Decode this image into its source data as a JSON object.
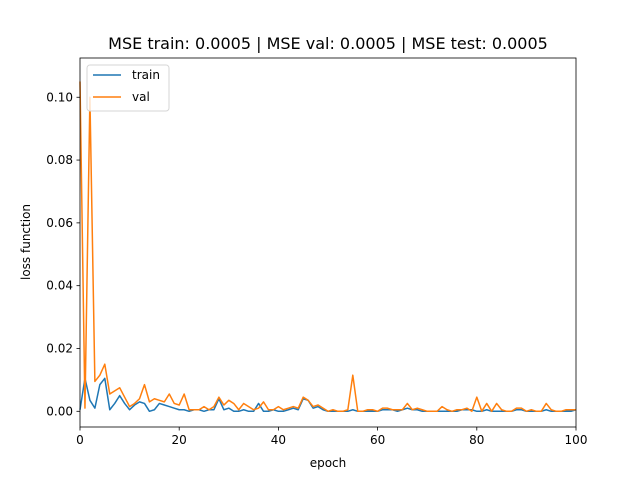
{
  "chart_data": {
    "type": "line",
    "title": "MSE train: 0.0005 | MSE val: 0.0005 | MSE test: 0.0005",
    "xlabel": "epoch",
    "ylabel": "loss function",
    "xlim": [
      0,
      100
    ],
    "ylim": [
      -0.005,
      0.1125
    ],
    "x_ticks": [
      0,
      20,
      40,
      60,
      80,
      100
    ],
    "x_tick_labels": [
      "0",
      "20",
      "40",
      "60",
      "80",
      "100"
    ],
    "y_ticks": [
      0.0,
      0.02,
      0.04,
      0.06,
      0.08,
      0.1
    ],
    "y_tick_labels": [
      "0.00",
      "0.02",
      "0.04",
      "0.06",
      "0.08",
      "0.10"
    ],
    "grid": false,
    "legend_position": "top-left",
    "x": [
      0,
      1,
      2,
      3,
      4,
      5,
      6,
      7,
      8,
      9,
      10,
      11,
      12,
      13,
      14,
      15,
      16,
      17,
      18,
      19,
      20,
      21,
      22,
      23,
      24,
      25,
      26,
      27,
      28,
      29,
      30,
      31,
      32,
      33,
      34,
      35,
      36,
      37,
      38,
      39,
      40,
      41,
      42,
      43,
      44,
      45,
      46,
      47,
      48,
      49,
      50,
      51,
      52,
      53,
      54,
      55,
      56,
      57,
      58,
      59,
      60,
      61,
      62,
      63,
      64,
      65,
      66,
      67,
      68,
      69,
      70,
      71,
      72,
      73,
      74,
      75,
      76,
      77,
      78,
      79,
      80,
      81,
      82,
      83,
      84,
      85,
      86,
      87,
      88,
      89,
      90,
      91,
      92,
      93,
      94,
      95,
      96,
      97,
      98,
      99,
      100
    ],
    "series": [
      {
        "name": "train",
        "color": "#1f77b4",
        "values": [
          0.0005,
          0.0105,
          0.0035,
          0.001,
          0.0085,
          0.0105,
          0.0005,
          0.0025,
          0.005,
          0.0025,
          0.0005,
          0.002,
          0.003,
          0.0025,
          0.0,
          0.0005,
          0.0025,
          0.002,
          0.0015,
          0.001,
          0.0005,
          0.0005,
          0.0,
          0.0005,
          0.0005,
          0.0,
          0.0005,
          0.0005,
          0.004,
          0.0005,
          0.001,
          0.0,
          0.0,
          0.0005,
          0.0,
          0.0,
          0.0025,
          0.0,
          0.0,
          0.0005,
          0.0,
          0.0,
          0.0005,
          0.001,
          0.0005,
          0.004,
          0.0035,
          0.001,
          0.0015,
          0.0005,
          0.0,
          0.0,
          0.0,
          0.0,
          0.0,
          0.0005,
          0.0,
          0.0,
          0.0,
          0.0,
          0.0,
          0.0005,
          0.0005,
          0.0005,
          0.0,
          0.0005,
          0.001,
          0.0005,
          0.0005,
          0.0,
          0.0,
          0.0,
          0.0,
          0.0,
          0.0,
          0.0,
          0.0,
          0.0005,
          0.0005,
          0.0005,
          0.0,
          0.0,
          0.0005,
          0.0,
          0.0,
          0.0,
          0.0,
          0.0,
          0.0005,
          0.0005,
          0.0,
          0.0,
          0.0,
          0.0,
          0.0005,
          0.0,
          0.0,
          0.0,
          0.0,
          0.0,
          0.0005
        ]
      },
      {
        "name": "val",
        "color": "#ff7f0e",
        "values": [
          0.105,
          0.001,
          0.1,
          0.0095,
          0.0115,
          0.015,
          0.0055,
          0.0065,
          0.0075,
          0.0045,
          0.0015,
          0.0025,
          0.004,
          0.0085,
          0.003,
          0.004,
          0.0035,
          0.003,
          0.0055,
          0.0025,
          0.002,
          0.0055,
          0.0005,
          0.0005,
          0.0005,
          0.0015,
          0.0005,
          0.0015,
          0.0045,
          0.002,
          0.0035,
          0.0025,
          0.0005,
          0.0025,
          0.0015,
          0.0005,
          0.001,
          0.003,
          0.0005,
          0.0005,
          0.0015,
          0.0005,
          0.001,
          0.0015,
          0.001,
          0.0045,
          0.0035,
          0.0015,
          0.002,
          0.001,
          0.0,
          0.0005,
          0.0,
          0.0,
          0.0005,
          0.0115,
          0.0,
          0.0,
          0.0005,
          0.0005,
          0.0,
          0.001,
          0.001,
          0.0005,
          0.0005,
          0.0005,
          0.0025,
          0.0005,
          0.001,
          0.0005,
          0.0,
          0.0,
          0.0,
          0.0015,
          0.0005,
          0.0,
          0.0005,
          0.0005,
          0.001,
          0.0,
          0.0045,
          0.0,
          0.0025,
          0.0,
          0.0025,
          0.0005,
          0.0,
          0.0,
          0.001,
          0.001,
          0.0,
          0.0005,
          0.0,
          0.0,
          0.0025,
          0.0005,
          0.0,
          0.0,
          0.0005,
          0.0005,
          0.0005
        ]
      }
    ]
  }
}
